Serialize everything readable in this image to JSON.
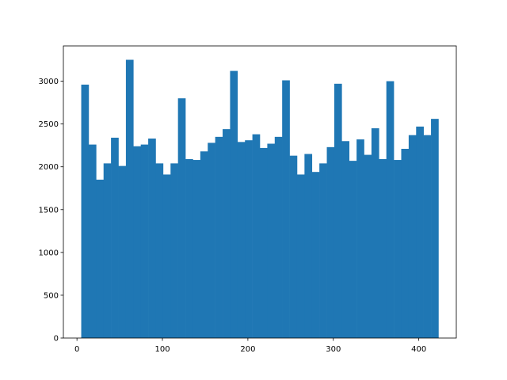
{
  "chart_data": {
    "type": "histogram",
    "color": "#1f77b4",
    "bins": [
      5,
      13.71,
      22.42,
      31.12,
      39.83,
      48.54,
      57.25,
      65.96,
      74.67,
      83.37,
      92.08,
      100.79,
      109.5,
      118.21,
      126.92,
      135.62,
      144.33,
      153.04,
      161.75,
      170.46,
      179.17,
      187.87,
      196.58,
      205.29,
      214,
      222.71,
      231.42,
      240.12,
      248.83,
      257.54,
      266.25,
      274.96,
      283.67,
      292.37,
      301.08,
      309.79,
      318.5,
      327.21,
      335.92,
      344.62,
      353.33,
      362.04,
      370.75,
      379.46,
      388.17,
      396.87,
      405.58,
      414.29,
      423
    ],
    "values": [
      2960,
      2260,
      1850,
      2040,
      2340,
      2010,
      3250,
      2240,
      2260,
      2330,
      2040,
      1910,
      2040,
      2800,
      2090,
      2080,
      2180,
      2280,
      2350,
      2440,
      3120,
      2290,
      2310,
      2380,
      2220,
      2270,
      2350,
      3010,
      2130,
      1910,
      2150,
      1940,
      2040,
      2230,
      2970,
      2300,
      2070,
      2320,
      2140,
      2450,
      2090,
      3000,
      2080,
      2210,
      2370,
      2470,
      2370,
      2560
    ],
    "xlim": [
      -15.9,
      443.9
    ],
    "ylim": [
      0,
      3412
    ],
    "xticks": [
      0,
      100,
      200,
      300,
      400
    ],
    "yticks": [
      0,
      500,
      1000,
      1500,
      2000,
      2500,
      3000
    ],
    "grid": false
  }
}
